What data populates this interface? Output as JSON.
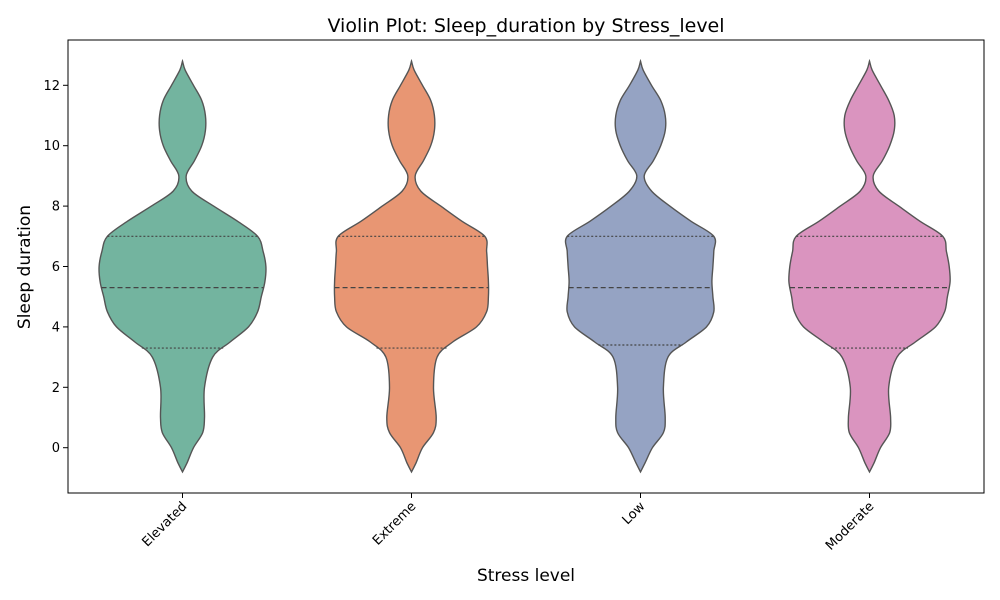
{
  "chart_data": {
    "type": "violin",
    "title": "Violin Plot: Sleep_duration by Stress_level",
    "xlabel": "Stress level",
    "ylabel": "Sleep duration",
    "categories": [
      "Elevated",
      "Extreme",
      "Low",
      "Moderate"
    ],
    "colors": [
      "#73b49f",
      "#e89673",
      "#95a3c3",
      "#da94bf"
    ],
    "ylim": [
      -1.5,
      13.5
    ],
    "yticks": [
      0,
      2,
      4,
      6,
      8,
      10,
      12
    ],
    "grid": false,
    "violins": [
      {
        "category": "Elevated",
        "quartiles": {
          "q1": 3.3,
          "median": 5.3,
          "q3": 7.0
        },
        "density_profile": [
          {
            "y": -0.8,
            "w": 0.0
          },
          {
            "y": -0.5,
            "w": 0.05
          },
          {
            "y": 0.0,
            "w": 0.12
          },
          {
            "y": 0.5,
            "w": 0.22
          },
          {
            "y": 1.0,
            "w": 0.24
          },
          {
            "y": 2.0,
            "w": 0.24
          },
          {
            "y": 3.0,
            "w": 0.33
          },
          {
            "y": 3.5,
            "w": 0.52
          },
          {
            "y": 4.0,
            "w": 0.72
          },
          {
            "y": 4.5,
            "w": 0.82
          },
          {
            "y": 5.0,
            "w": 0.86
          },
          {
            "y": 5.5,
            "w": 0.9
          },
          {
            "y": 6.0,
            "w": 0.91
          },
          {
            "y": 6.5,
            "w": 0.88
          },
          {
            "y": 7.0,
            "w": 0.82
          },
          {
            "y": 7.5,
            "w": 0.6
          },
          {
            "y": 8.0,
            "w": 0.34
          },
          {
            "y": 8.5,
            "w": 0.1
          },
          {
            "y": 9.0,
            "w": 0.04
          },
          {
            "y": 9.5,
            "w": 0.13
          },
          {
            "y": 10.0,
            "w": 0.21
          },
          {
            "y": 10.5,
            "w": 0.25
          },
          {
            "y": 11.0,
            "w": 0.25
          },
          {
            "y": 11.5,
            "w": 0.21
          },
          {
            "y": 12.0,
            "w": 0.12
          },
          {
            "y": 12.5,
            "w": 0.03
          },
          {
            "y": 12.8,
            "w": 0.0
          }
        ]
      },
      {
        "category": "Extreme",
        "quartiles": {
          "q1": 3.3,
          "median": 5.3,
          "q3": 7.0
        },
        "density_profile": [
          {
            "y": -0.8,
            "w": 0.0
          },
          {
            "y": -0.5,
            "w": 0.05
          },
          {
            "y": 0.0,
            "w": 0.12
          },
          {
            "y": 0.5,
            "w": 0.24
          },
          {
            "y": 1.0,
            "w": 0.27
          },
          {
            "y": 2.0,
            "w": 0.24
          },
          {
            "y": 3.0,
            "w": 0.28
          },
          {
            "y": 3.5,
            "w": 0.45
          },
          {
            "y": 4.0,
            "w": 0.71
          },
          {
            "y": 4.5,
            "w": 0.82
          },
          {
            "y": 5.0,
            "w": 0.84
          },
          {
            "y": 5.5,
            "w": 0.84
          },
          {
            "y": 6.0,
            "w": 0.83
          },
          {
            "y": 6.5,
            "w": 0.82
          },
          {
            "y": 7.0,
            "w": 0.8
          },
          {
            "y": 7.5,
            "w": 0.55
          },
          {
            "y": 8.0,
            "w": 0.32
          },
          {
            "y": 8.5,
            "w": 0.1
          },
          {
            "y": 9.0,
            "w": 0.04
          },
          {
            "y": 9.5,
            "w": 0.13
          },
          {
            "y": 10.0,
            "w": 0.21
          },
          {
            "y": 10.5,
            "w": 0.25
          },
          {
            "y": 11.0,
            "w": 0.25
          },
          {
            "y": 11.5,
            "w": 0.21
          },
          {
            "y": 12.0,
            "w": 0.12
          },
          {
            "y": 12.5,
            "w": 0.03
          },
          {
            "y": 12.8,
            "w": 0.0
          }
        ]
      },
      {
        "category": "Low",
        "quartiles": {
          "q1": 3.4,
          "median": 5.3,
          "q3": 7.0
        },
        "density_profile": [
          {
            "y": -0.8,
            "w": 0.0
          },
          {
            "y": -0.5,
            "w": 0.05
          },
          {
            "y": 0.0,
            "w": 0.13
          },
          {
            "y": 0.5,
            "w": 0.25
          },
          {
            "y": 1.0,
            "w": 0.27
          },
          {
            "y": 2.0,
            "w": 0.25
          },
          {
            "y": 3.0,
            "w": 0.3
          },
          {
            "y": 3.5,
            "w": 0.5
          },
          {
            "y": 4.0,
            "w": 0.72
          },
          {
            "y": 4.5,
            "w": 0.8
          },
          {
            "y": 5.0,
            "w": 0.79
          },
          {
            "y": 5.5,
            "w": 0.78
          },
          {
            "y": 6.0,
            "w": 0.79
          },
          {
            "y": 6.5,
            "w": 0.8
          },
          {
            "y": 7.0,
            "w": 0.8
          },
          {
            "y": 7.5,
            "w": 0.55
          },
          {
            "y": 8.0,
            "w": 0.32
          },
          {
            "y": 8.5,
            "w": 0.12
          },
          {
            "y": 9.0,
            "w": 0.04
          },
          {
            "y": 9.5,
            "w": 0.14
          },
          {
            "y": 10.0,
            "w": 0.22
          },
          {
            "y": 10.5,
            "w": 0.27
          },
          {
            "y": 11.0,
            "w": 0.27
          },
          {
            "y": 11.5,
            "w": 0.22
          },
          {
            "y": 12.0,
            "w": 0.12
          },
          {
            "y": 12.5,
            "w": 0.03
          },
          {
            "y": 12.8,
            "w": 0.0
          }
        ]
      },
      {
        "category": "Moderate",
        "quartiles": {
          "q1": 3.3,
          "median": 5.3,
          "q3": 7.0
        },
        "density_profile": [
          {
            "y": -0.8,
            "w": 0.0
          },
          {
            "y": -0.5,
            "w": 0.05
          },
          {
            "y": 0.0,
            "w": 0.12
          },
          {
            "y": 0.5,
            "w": 0.22
          },
          {
            "y": 1.0,
            "w": 0.23
          },
          {
            "y": 2.0,
            "w": 0.21
          },
          {
            "y": 3.0,
            "w": 0.3
          },
          {
            "y": 3.5,
            "w": 0.5
          },
          {
            "y": 4.0,
            "w": 0.72
          },
          {
            "y": 4.5,
            "w": 0.82
          },
          {
            "y": 5.0,
            "w": 0.85
          },
          {
            "y": 5.5,
            "w": 0.88
          },
          {
            "y": 6.0,
            "w": 0.87
          },
          {
            "y": 6.5,
            "w": 0.84
          },
          {
            "y": 7.0,
            "w": 0.8
          },
          {
            "y": 7.5,
            "w": 0.55
          },
          {
            "y": 8.0,
            "w": 0.32
          },
          {
            "y": 8.5,
            "w": 0.1
          },
          {
            "y": 9.0,
            "w": 0.04
          },
          {
            "y": 9.5,
            "w": 0.14
          },
          {
            "y": 10.0,
            "w": 0.22
          },
          {
            "y": 10.5,
            "w": 0.27
          },
          {
            "y": 11.0,
            "w": 0.27
          },
          {
            "y": 11.5,
            "w": 0.21
          },
          {
            "y": 12.0,
            "w": 0.12
          },
          {
            "y": 12.5,
            "w": 0.03
          },
          {
            "y": 12.8,
            "w": 0.0
          }
        ]
      }
    ]
  }
}
